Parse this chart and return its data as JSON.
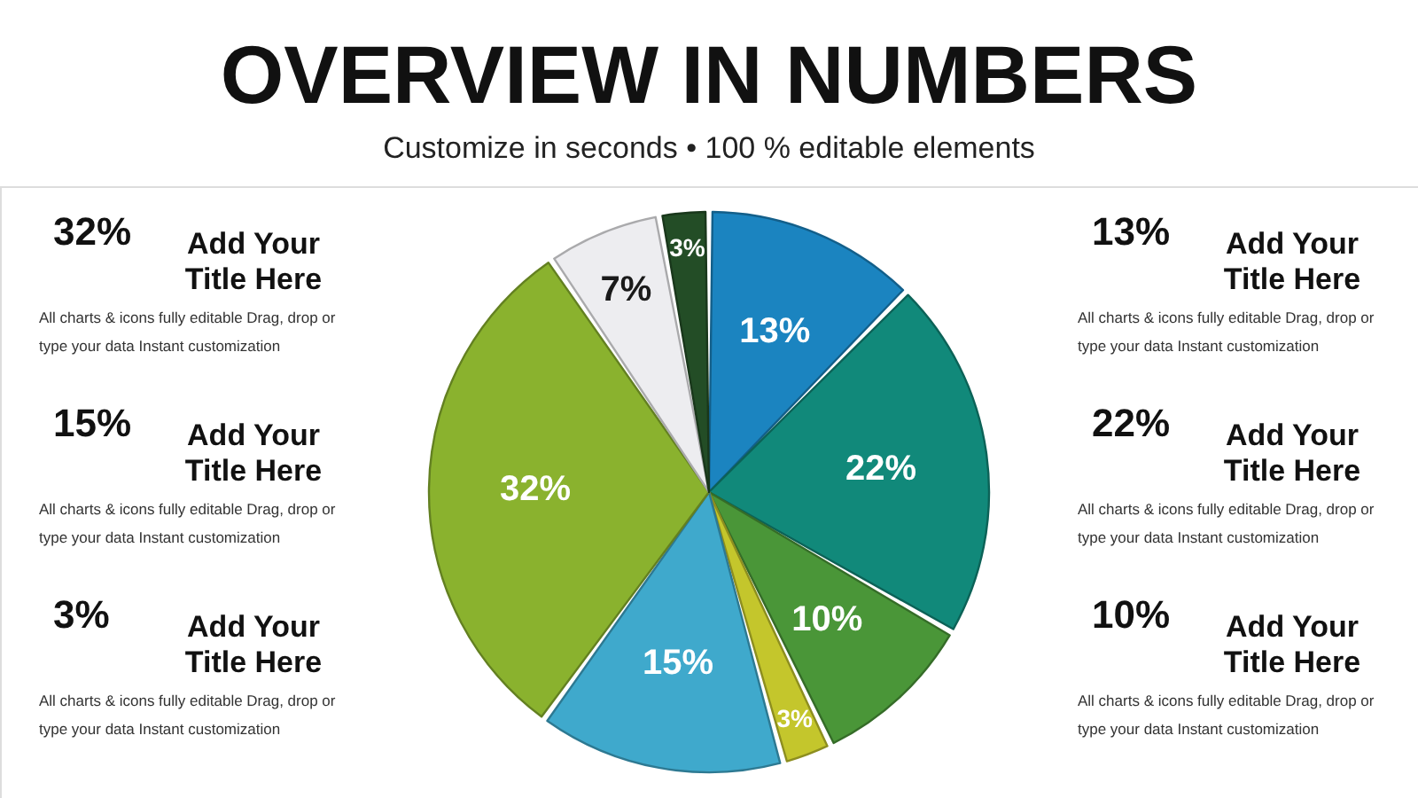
{
  "chart_data": {
    "type": "pie",
    "title": "OVERVIEW IN NUMBERS",
    "subtitle": "Customize in seconds • 100 % editable elements",
    "categories": [
      null,
      null,
      null,
      null,
      null,
      null,
      null,
      null
    ],
    "values": [
      13,
      22,
      10,
      3,
      15,
      32,
      7,
      3
    ],
    "colors": [
      "#1b84c0",
      "#11897a",
      "#4a9638",
      "#c4c62c",
      "#3fa9cc",
      "#8ab22e",
      "#ededf0",
      "#234d26"
    ],
    "value_labels": [
      "13%",
      "22%",
      "10%",
      "3%",
      "15%",
      "32%",
      "7%",
      "3%"
    ],
    "annotations": [
      "32%",
      "Add Your Title Here",
      "All charts & icons fully editable Drag, drop or type your data Instant customization",
      "15%",
      "Add Your Title Here",
      "All charts & icons fully editable Drag, drop or type your data Instant customization",
      "3%",
      "Add Your Title Here",
      "All charts & icons fully editable Drag, drop or type your data Instant customization",
      "13%",
      "Add Your Title Here",
      "All charts & icons fully editable Drag, drop or type your data Instant customization",
      "22%",
      "Add Your Title Here",
      "All charts & icons fully editable Drag, drop or type your data Instant customization",
      "10%",
      "Add Your Title Here",
      "All charts & icons fully editable Drag, drop or type your data Instant customization"
    ]
  }
}
